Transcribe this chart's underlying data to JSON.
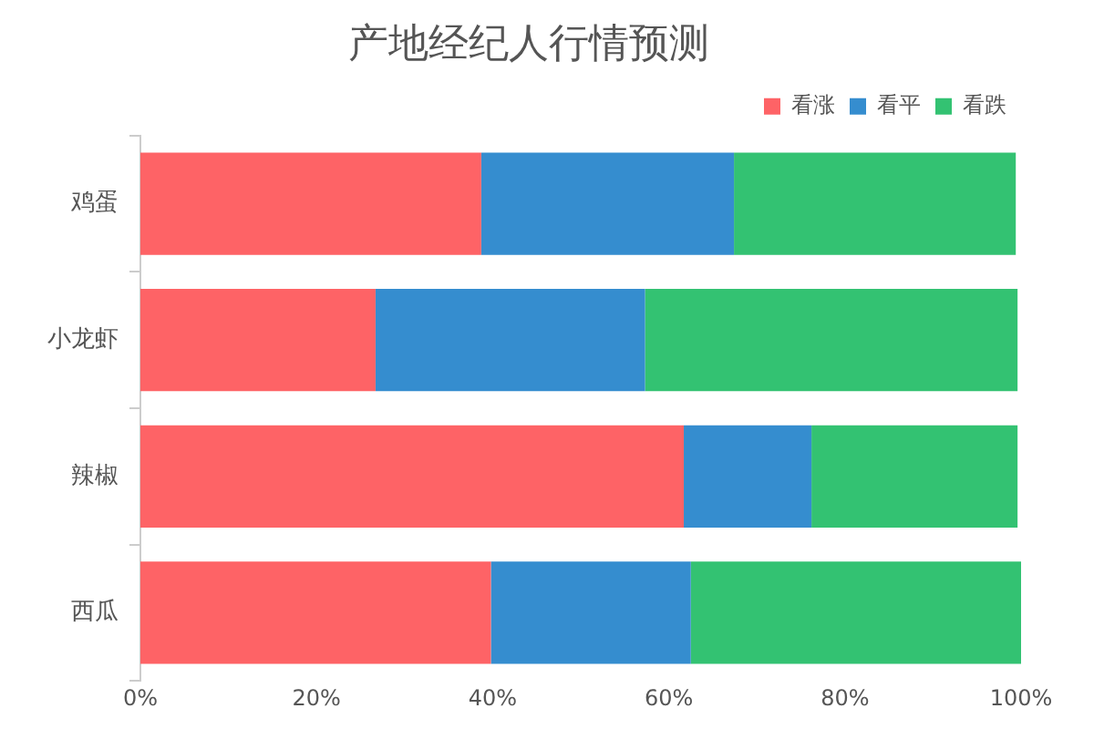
{
  "chart_data": {
    "type": "bar",
    "orientation": "horizontal",
    "stacked": true,
    "title": "产地经纪人行情预测",
    "categories": [
      "鸡蛋",
      "小龙虾",
      "辣椒",
      "西瓜"
    ],
    "series": [
      {
        "name": "看涨",
        "color": "#fe6366",
        "values": [
          38.7,
          26.7,
          61.7,
          39.8
        ]
      },
      {
        "name": "看平",
        "color": "#358dcf",
        "values": [
          28.7,
          30.6,
          14.5,
          22.7
        ]
      },
      {
        "name": "看跌",
        "color": "#33c272",
        "values": [
          32.0,
          42.3,
          23.4,
          37.5
        ]
      }
    ],
    "xlim": [
      0,
      100
    ],
    "xticks": [
      {
        "value": 0,
        "label": "0%"
      },
      {
        "value": 20,
        "label": "20%"
      },
      {
        "value": 40,
        "label": "40%"
      },
      {
        "value": 60,
        "label": "60%"
      },
      {
        "value": 80,
        "label": "80%"
      },
      {
        "value": 100,
        "label": "100%"
      }
    ],
    "legend": "top right",
    "grid": false
  }
}
